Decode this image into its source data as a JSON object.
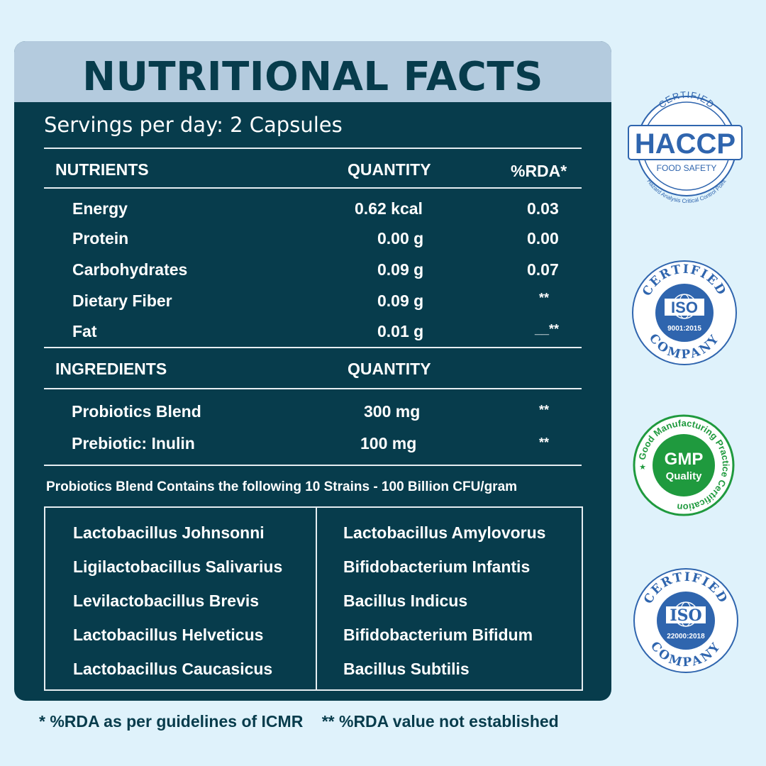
{
  "title": "NUTRITIONAL FACTS",
  "servings": "Servings per day: 2 Capsules",
  "nutrients_header": {
    "col1": "NUTRIENTS",
    "col2": "QUANTITY",
    "col3": "%RDA*"
  },
  "nutrients": [
    {
      "name": "Energy",
      "quantity": "0.62 kcal",
      "rda": "0.03"
    },
    {
      "name": "Protein",
      "quantity": "0.00 g",
      "rda": "0.00"
    },
    {
      "name": "Carbohydrates",
      "quantity": "0.09 g",
      "rda": "0.07"
    },
    {
      "name": "Dietary Fiber",
      "quantity": "0.09 g",
      "rda": "**"
    },
    {
      "name": "Fat",
      "quantity": "0.01 g",
      "rda": "__**"
    }
  ],
  "ingredients_header": {
    "col1": "INGREDIENTS",
    "col2": "QUANTITY"
  },
  "ingredients": [
    {
      "name": "Probiotics Blend",
      "quantity": "300 mg",
      "rda": "**"
    },
    {
      "name": "Prebiotic: Inulin",
      "quantity": "100 mg",
      "rda": "**"
    }
  ],
  "strains_heading": "Probiotics Blend Contains the following 10 Strains - 100 Billion CFU/gram",
  "strains_left": [
    "Lactobacillus Johnsonni",
    "Ligilactobacillus Salivarius",
    "Levilactobacillus Brevis",
    "Lactobacillus Helveticus",
    "Lactobacillus Caucasicus"
  ],
  "strains_right": [
    "Lactobacillus Amylovorus",
    "Bifidobacterium Infantis",
    "Bacillus Indicus",
    "Bifidobacterium Bifidum",
    "Bacillus Subtilis"
  ],
  "footer": {
    "note1": "* %RDA as per guidelines of ICMR",
    "note2": "** %RDA value not established"
  },
  "badges": {
    "haccp": {
      "top": "CERTIFIED",
      "main": "HACCP",
      "sub": "FOOD SAFETY",
      "arc": "Hazard Analysis Critical Control Point"
    },
    "iso1": {
      "top": "CERTIFIED",
      "main": "ISO",
      "code": "9001:2015",
      "bottom": "COMPANY"
    },
    "gmp": {
      "main": "GMP",
      "sub": "Quality",
      "arc": "Good Manufacturing Practice Certification"
    },
    "iso2": {
      "top": "CERTIFIED",
      "main": "ISO",
      "code": "22000:2018",
      "bottom": "COMPANY"
    }
  },
  "colors": {
    "background": "#dff2fb",
    "panel": "#073c4c",
    "header_band": "#b4cbde",
    "badge_blue": "#2f65ae",
    "badge_green": "#1f9a3e"
  }
}
